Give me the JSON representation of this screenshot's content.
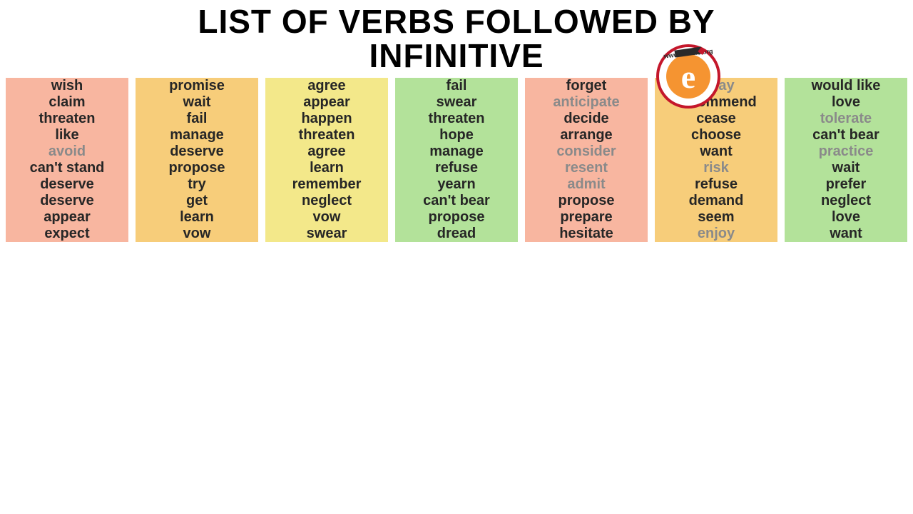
{
  "title_line1": "LIST OF VERBS FOLLOWED BY",
  "title_line2": "INFINITIVE",
  "title_fontsize": 46,
  "logo_url_text": "www.engdic.org",
  "column_colors": [
    "#f8b6a0",
    "#f7cd7a",
    "#f3e88a",
    "#b3e29a",
    "#f8b6a0",
    "#f7cd7a",
    "#b3e29a"
  ],
  "text_color": "#262626",
  "muted_color": "#8a8a8a",
  "cell_fontsize": 20,
  "columns": [
    [
      {
        "t": "wish",
        "m": false
      },
      {
        "t": "claim",
        "m": false
      },
      {
        "t": "threaten",
        "m": false
      },
      {
        "t": "like",
        "m": false
      },
      {
        "t": "avoid",
        "m": true
      },
      {
        "t": "can't stand",
        "m": false
      },
      {
        "t": "deserve",
        "m": false
      },
      {
        "t": "deserve",
        "m": false
      },
      {
        "t": "appear",
        "m": false
      },
      {
        "t": "expect",
        "m": false
      }
    ],
    [
      {
        "t": "promise",
        "m": false
      },
      {
        "t": "wait",
        "m": false
      },
      {
        "t": "fail",
        "m": false
      },
      {
        "t": "manage",
        "m": false
      },
      {
        "t": "deserve",
        "m": false
      },
      {
        "t": "propose",
        "m": false
      },
      {
        "t": "try",
        "m": false
      },
      {
        "t": "get",
        "m": false
      },
      {
        "t": "learn",
        "m": false
      },
      {
        "t": "vow",
        "m": false
      }
    ],
    [
      {
        "t": "agree",
        "m": false
      },
      {
        "t": "appear",
        "m": false
      },
      {
        "t": "happen",
        "m": false
      },
      {
        "t": "threaten",
        "m": false
      },
      {
        "t": "agree",
        "m": false
      },
      {
        "t": "learn",
        "m": false
      },
      {
        "t": "remember",
        "m": false
      },
      {
        "t": "neglect",
        "m": false
      },
      {
        "t": "vow",
        "m": false
      },
      {
        "t": "swear",
        "m": false
      }
    ],
    [
      {
        "t": "fail",
        "m": false
      },
      {
        "t": "swear",
        "m": false
      },
      {
        "t": "threaten",
        "m": false
      },
      {
        "t": "hope",
        "m": false
      },
      {
        "t": "manage",
        "m": false
      },
      {
        "t": "refuse",
        "m": false
      },
      {
        "t": "yearn",
        "m": false
      },
      {
        "t": "can't bear",
        "m": false
      },
      {
        "t": "propose",
        "m": false
      },
      {
        "t": "dread",
        "m": false
      }
    ],
    [
      {
        "t": "forget",
        "m": false
      },
      {
        "t": "anticipate",
        "m": true
      },
      {
        "t": "decide",
        "m": false
      },
      {
        "t": "arrange",
        "m": false
      },
      {
        "t": "consider",
        "m": true
      },
      {
        "t": "resent",
        "m": true
      },
      {
        "t": "admit",
        "m": true
      },
      {
        "t": "propose",
        "m": false
      },
      {
        "t": "prepare",
        "m": false
      },
      {
        "t": "hesitate",
        "m": false
      }
    ],
    [
      {
        "t": "delay",
        "m": true
      },
      {
        "t": "recommend",
        "m": false
      },
      {
        "t": "cease",
        "m": false
      },
      {
        "t": "choose",
        "m": false
      },
      {
        "t": "want",
        "m": false
      },
      {
        "t": "risk",
        "m": true
      },
      {
        "t": "refuse",
        "m": false
      },
      {
        "t": "demand",
        "m": false
      },
      {
        "t": "seem",
        "m": false
      },
      {
        "t": "enjoy",
        "m": true
      }
    ],
    [
      {
        "t": "would like",
        "m": false
      },
      {
        "t": "love",
        "m": false
      },
      {
        "t": "tolerate",
        "m": true
      },
      {
        "t": "can't bear",
        "m": false
      },
      {
        "t": "practice",
        "m": true
      },
      {
        "t": "wait",
        "m": false
      },
      {
        "t": "prefer",
        "m": false
      },
      {
        "t": "neglect",
        "m": false
      },
      {
        "t": "love",
        "m": false
      },
      {
        "t": "want",
        "m": false
      }
    ]
  ]
}
